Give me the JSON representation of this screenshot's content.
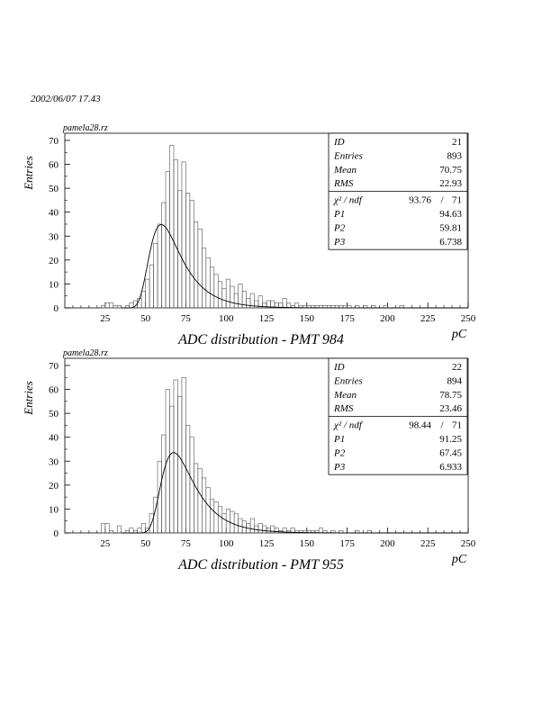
{
  "stamp": "2002/06/07   17.43",
  "chart_data": [
    {
      "type": "bar",
      "file_label": "pamela28.rz",
      "title": "ADC distribution - PMT 984",
      "xlabel": "pC",
      "ylabel": "Entries",
      "xlim": [
        0,
        250
      ],
      "ylim": [
        0,
        73
      ],
      "xticks": [
        25,
        50,
        75,
        100,
        125,
        150,
        175,
        200,
        225,
        250
      ],
      "yticks": [
        0,
        10,
        20,
        30,
        40,
        50,
        60,
        70
      ],
      "bin_width": 2.5,
      "bin_start": 0,
      "counts": [
        0,
        0,
        0,
        0,
        0,
        0,
        0,
        0,
        0,
        1,
        2,
        2,
        1,
        1,
        0,
        1,
        2,
        3,
        4,
        7,
        12,
        18,
        27,
        35,
        44,
        57,
        68,
        62,
        49,
        61,
        48,
        45,
        36,
        33,
        25,
        21,
        17,
        14,
        11,
        8,
        12,
        9,
        6,
        10,
        7,
        4,
        6,
        3,
        5,
        2,
        3,
        3,
        2,
        2,
        4,
        2,
        1,
        2,
        1,
        1,
        1,
        1,
        1,
        1,
        1,
        1,
        1,
        1,
        1,
        1,
        1,
        0,
        1,
        0,
        1,
        0,
        1,
        0,
        0,
        1,
        0,
        0,
        0,
        1,
        0,
        0,
        0,
        0,
        0,
        0,
        0,
        0,
        0,
        0,
        0,
        0,
        0,
        0,
        0,
        0
      ],
      "fit": {
        "P1": 94.63,
        "P2": 59.81,
        "P3": 6.738
      },
      "stats": [
        {
          "label": "ID",
          "value": "21"
        },
        {
          "label": "Entries",
          "value": "893"
        },
        {
          "label": "Mean",
          "value": "70.75"
        },
        {
          "label": "RMS",
          "value": "22.93"
        }
      ],
      "chi2": {
        "label": "χ² / ndf",
        "value": "93.76",
        "sep": "/",
        "ndf": "71"
      },
      "params": [
        {
          "label": "P1",
          "value": "94.63"
        },
        {
          "label": "P2",
          "value": "59.81"
        },
        {
          "label": "P3",
          "value": "6.738"
        }
      ]
    },
    {
      "type": "bar",
      "file_label": "pamela28.rz",
      "title": "ADC distribution - PMT 955",
      "xlabel": "pC",
      "ylabel": "Entries",
      "xlim": [
        0,
        250
      ],
      "ylim": [
        0,
        73
      ],
      "xticks": [
        25,
        50,
        75,
        100,
        125,
        150,
        175,
        200,
        225,
        250
      ],
      "yticks": [
        0,
        10,
        20,
        30,
        40,
        50,
        60,
        70
      ],
      "bin_width": 2.5,
      "bin_start": 0,
      "counts": [
        0,
        0,
        0,
        0,
        0,
        0,
        0,
        0,
        0,
        4,
        4,
        1,
        0,
        3,
        0,
        1,
        2,
        1,
        2,
        4,
        2,
        8,
        15,
        30,
        41,
        60,
        53,
        64,
        57,
        65,
        45,
        40,
        29,
        27,
        23,
        19,
        14,
        13,
        11,
        8,
        10,
        9,
        8,
        6,
        5,
        4,
        6,
        3,
        4,
        3,
        2,
        3,
        2,
        1,
        2,
        1,
        2,
        1,
        1,
        1,
        1,
        1,
        1,
        2,
        1,
        0,
        1,
        0,
        1,
        0,
        0,
        0,
        1,
        0,
        0,
        1,
        0,
        0,
        0,
        0,
        0,
        0,
        0,
        0,
        0,
        0,
        0,
        0,
        0,
        0,
        0,
        0,
        0,
        0,
        0,
        0,
        0,
        0,
        0,
        0
      ],
      "fit": {
        "P1": 91.25,
        "P2": 67.45,
        "P3": 6.933
      },
      "stats": [
        {
          "label": "ID",
          "value": "22"
        },
        {
          "label": "Entries",
          "value": "894"
        },
        {
          "label": "Mean",
          "value": "78.75"
        },
        {
          "label": "RMS",
          "value": "23.46"
        }
      ],
      "chi2": {
        "label": "χ² / ndf",
        "value": "98.44",
        "sep": "/",
        "ndf": "71"
      },
      "params": [
        {
          "label": "P1",
          "value": "91.25"
        },
        {
          "label": "P2",
          "value": "67.45"
        },
        {
          "label": "P3",
          "value": "6.933"
        }
      ]
    }
  ]
}
